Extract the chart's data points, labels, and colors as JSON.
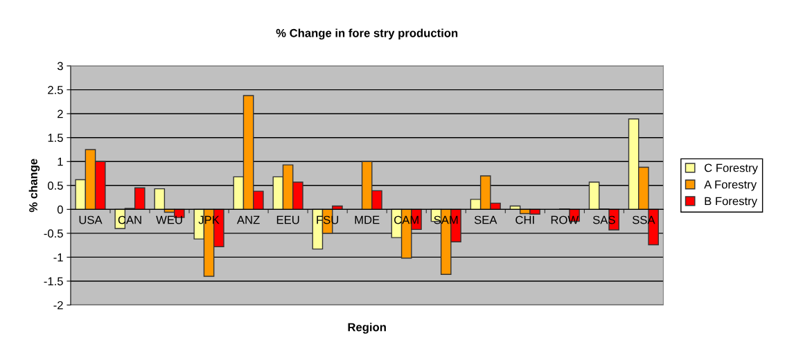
{
  "chart_data": {
    "type": "bar",
    "title": "% Change in fore stry production",
    "xlabel": "Region",
    "ylabel": "% change",
    "categories": [
      "USA",
      "CAN",
      "WEU",
      "JPK",
      "ANZ",
      "EEU",
      "FSU",
      "MDE",
      "CAM",
      "SAM",
      "SEA",
      "CHI",
      "ROW",
      "SAS",
      "SSA"
    ],
    "series": [
      {
        "name": "C Forestry",
        "color": "#ffff99",
        "values": [
          0.62,
          -0.4,
          0.43,
          -0.62,
          0.68,
          0.68,
          -0.83,
          null,
          -0.59,
          -0.25,
          0.21,
          0.07,
          null,
          0.57,
          1.89
        ]
      },
      {
        "name": "A Forestry",
        "color": "#ff9900",
        "values": [
          1.25,
          0.02,
          -0.06,
          -1.4,
          2.38,
          0.93,
          -0.5,
          1.0,
          -1.02,
          -1.36,
          0.7,
          -0.09,
          0.01,
          0.01,
          0.88
        ]
      },
      {
        "name": "B Forestry",
        "color": "#ff0000",
        "values": [
          1.0,
          0.45,
          -0.17,
          -0.78,
          0.38,
          0.57,
          0.07,
          0.39,
          -0.42,
          -0.68,
          0.13,
          -0.1,
          -0.25,
          -0.43,
          -0.74
        ]
      }
    ],
    "ylim": [
      -2,
      3
    ],
    "yticks": [
      -2,
      -1.5,
      -1,
      -0.5,
      0,
      0.5,
      1,
      1.5,
      2,
      2.5,
      3
    ],
    "grid": "y",
    "legend": "right"
  }
}
